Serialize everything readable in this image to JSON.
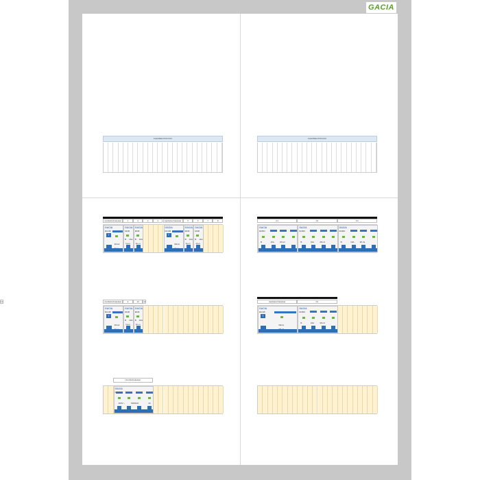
{
  "header": {
    "logo": "GACIA"
  },
  "strips": [
    {
      "title": "KLEMMENSTROOK"
    },
    {
      "title": "KLEMMENSTROOK"
    }
  ],
  "rows": [
    {
      "id": "row-a",
      "blackbar": true,
      "header_cells": [
        "Aardlekschakelaar",
        "1",
        "2",
        "3",
        "4",
        "Aardlekschakelaar",
        "5",
        "6",
        "7",
        "8"
      ],
      "devices": [
        {
          "type": "rcd",
          "brand": "GACIA",
          "model": "RCCB",
          "test": "T",
          "rating": "30mA",
          "poles": "2p+n"
        },
        {
          "type": "mcb",
          "brand": "GACIA",
          "model": "MCB",
          "curve": "B",
          "current": "16A",
          "poles": "1p+n"
        },
        {
          "type": "mcb",
          "brand": "GACIA",
          "model": "MCB",
          "curve": "B",
          "current": "16A",
          "poles": "1p+n"
        },
        {
          "type": "empty"
        },
        {
          "type": "empty"
        },
        {
          "type": "rcd",
          "brand": "GACIA",
          "model": "RCCB",
          "test": "T",
          "rating": "30mA",
          "poles": "2p+n"
        },
        {
          "type": "mcb",
          "brand": "GACIA",
          "model": "MCB",
          "curve": "B",
          "current": "16A",
          "poles": "1p+n"
        },
        {
          "type": "mcb",
          "brand": "GACIA",
          "model": "MCB",
          "curve": "B",
          "current": "16A",
          "poles": "1p+n"
        },
        {
          "type": "empty"
        },
        {
          "type": "empty"
        }
      ]
    },
    {
      "id": "row-b",
      "blackbar": false,
      "header_cells": [
        "Aardlekschakelaar",
        "9",
        "10",
        "11",
        "12"
      ],
      "devices": [
        {
          "type": "rcd",
          "brand": "GACIA",
          "model": "RCCB",
          "test": "T",
          "rating": "30mA",
          "poles": "2p+n"
        },
        {
          "type": "mcb",
          "brand": "GACIA",
          "model": "MCB",
          "curve": "B",
          "current": "16A",
          "poles": "1p+n"
        },
        {
          "type": "mcb",
          "brand": "GACIA",
          "model": "MCB",
          "curve": "B",
          "current": "16A",
          "poles": "1p+n"
        }
      ]
    },
    {
      "id": "row-c",
      "label": "Hoofdschakelaar",
      "devices": [
        {
          "type": "empty"
        },
        {
          "type": "main",
          "brand": "GACIA",
          "model": "DH",
          "voltage": "400V ~",
          "freq": "50/60Hz",
          "current": "40"
        }
      ]
    },
    {
      "id": "row-d",
      "blackbar": true,
      "header_cells": [
        "K1",
        "K2",
        "K3"
      ],
      "devices": [
        {
          "type": "rcbo",
          "brand": "GACIA",
          "model": "RCBO",
          "curve": "B",
          "current": "16A",
          "poles": "3P+N"
        },
        {
          "type": "rcbo",
          "brand": "GACIA",
          "model": "RCBO",
          "curve": "B",
          "current": "16A",
          "poles": "3P+N"
        },
        {
          "type": "rcbo",
          "brand": "GACIA",
          "model": "RCBO",
          "curve": "B",
          "current": "16A",
          "poles": "3P+N"
        }
      ]
    },
    {
      "id": "row-e",
      "blackbar": true,
      "header_cells": [
        "Aardlekschakelaar",
        "K1"
      ],
      "devices": [
        {
          "type": "rcd4",
          "brand": "GACIA",
          "model": "RCCB",
          "test": "T",
          "rating": "30mA",
          "poles": "3P+N"
        },
        {
          "type": "rcbo",
          "brand": "GACIA",
          "model": "RCBO",
          "curve": "B",
          "current": "16A",
          "poles": "3P+N"
        }
      ]
    },
    {
      "id": "row-f",
      "devices": []
    }
  ]
}
